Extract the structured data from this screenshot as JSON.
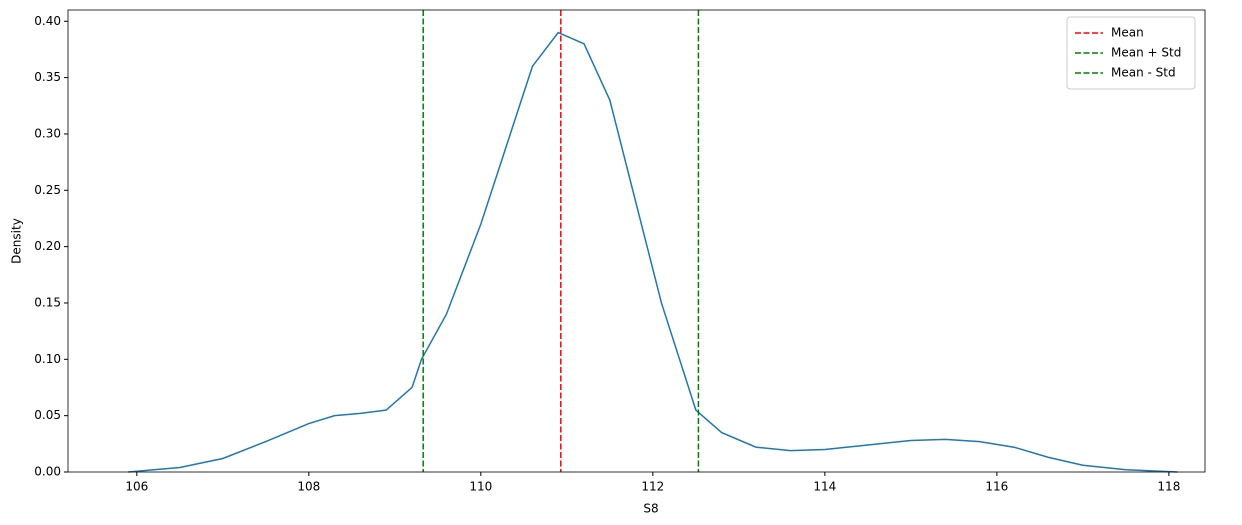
{
  "chart_data": {
    "type": "line",
    "xlabel": "S8",
    "ylabel": "Density",
    "x": [
      105.9,
      106.5,
      107,
      107.5,
      108,
      108.3,
      108.6,
      108.9,
      109.2,
      109.31,
      109.6,
      110,
      110.3,
      110.6,
      110.9,
      111.2,
      111.5,
      111.8,
      112.1,
      112.5,
      112.8,
      113.2,
      113.6,
      114,
      114.5,
      115,
      115.4,
      115.8,
      116.2,
      116.6,
      117,
      117.5,
      118.1
    ],
    "series": [
      {
        "name": "S8",
        "color": "#1f77b4",
        "values": [
          0.0,
          0.004,
          0.012,
          0.027,
          0.043,
          0.05,
          0.052,
          0.055,
          0.075,
          0.1,
          0.14,
          0.22,
          0.29,
          0.36,
          0.39,
          0.38,
          0.33,
          0.24,
          0.15,
          0.055,
          0.035,
          0.022,
          0.019,
          0.02,
          0.024,
          0.028,
          0.029,
          0.027,
          0.022,
          0.013,
          0.006,
          0.002,
          0.0
        ]
      }
    ],
    "vlines": [
      {
        "name": "Mean",
        "color": "#ff0000",
        "x": 110.93
      },
      {
        "name": "Mean + Std",
        "color": "#008000",
        "x": 112.53
      },
      {
        "name": "Mean - Std",
        "color": "#008000",
        "x": 109.33
      }
    ],
    "xlim": [
      105.2,
      118.42
    ],
    "xticks": [
      106,
      108,
      110,
      112,
      114,
      116,
      118
    ],
    "ylim": [
      0,
      0.41
    ],
    "yticks": [
      {
        "value": 0,
        "label": "0.00"
      },
      {
        "value": 0.05,
        "label": "0.05"
      },
      {
        "value": 0.1,
        "label": "0.10"
      },
      {
        "value": 0.15,
        "label": "0.15"
      },
      {
        "value": 0.2,
        "label": "0.20"
      },
      {
        "value": 0.25,
        "label": "0.25"
      },
      {
        "value": 0.3,
        "label": "0.30"
      },
      {
        "value": 0.35,
        "label": "0.35"
      },
      {
        "value": 0.4,
        "label": "0.40"
      }
    ],
    "legend": "upper right",
    "grid": false
  }
}
